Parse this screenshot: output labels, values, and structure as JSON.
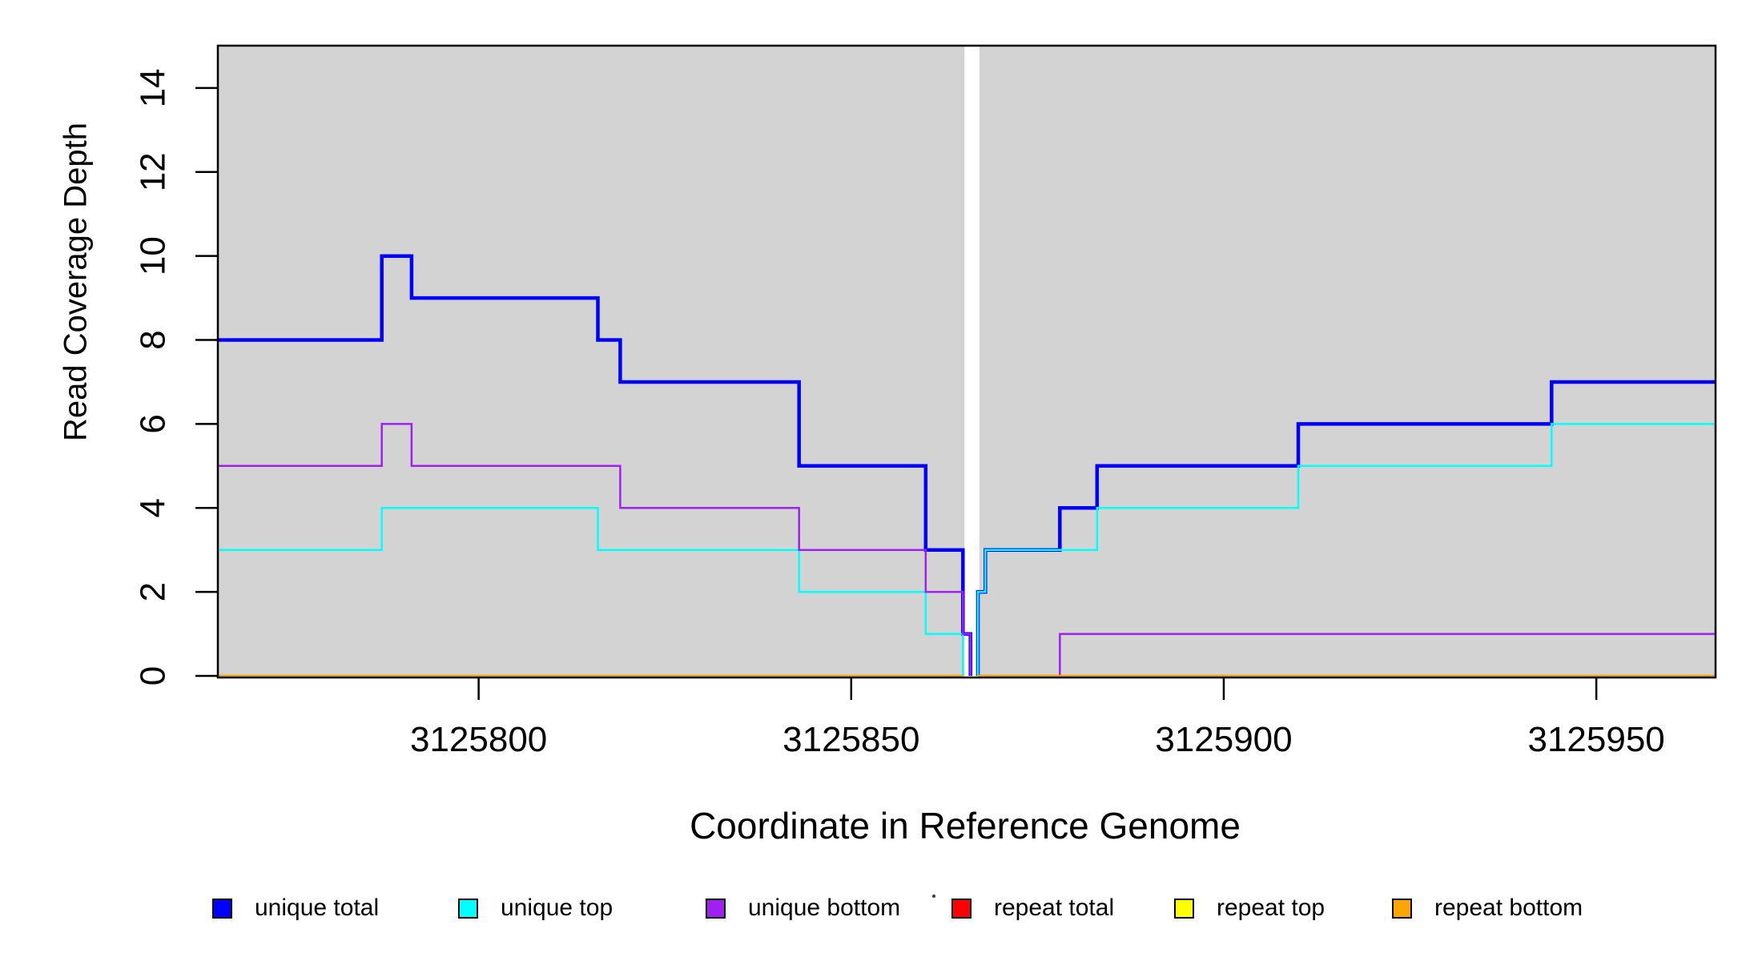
{
  "chart_data": {
    "type": "line",
    "step": true,
    "title": "",
    "xlabel": "Coordinate in Reference Genome",
    "ylabel": "Read Coverage Depth",
    "xlim": [
      3125765,
      3125966
    ],
    "ylim": [
      0,
      15
    ],
    "x_ticks": [
      3125800,
      3125850,
      3125900,
      3125950
    ],
    "y_ticks": [
      0,
      2,
      4,
      6,
      8,
      10,
      12,
      14
    ],
    "grid": false,
    "plot_background": "#d3d3d3",
    "page_background": "#ffffff",
    "axis_color": "#000000",
    "no_data_gap": {
      "from": 3125865.2,
      "to": 3125867.2,
      "color": "#ffffff"
    },
    "legend_position": "bottom",
    "series": [
      {
        "name": "unique total",
        "color": "#0000ff",
        "width": 4.5,
        "segments": [
          {
            "changes": [
              [
                3125765,
                8
              ],
              [
                3125787,
                10
              ],
              [
                3125791,
                9
              ],
              [
                3125816,
                8
              ],
              [
                3125819,
                7
              ],
              [
                3125843,
                5
              ],
              [
                3125860,
                3
              ],
              [
                3125865,
                1
              ],
              [
                3125866,
                0
              ]
            ],
            "end": 3125866
          },
          {
            "changes": [
              [
                3125867,
                0
              ],
              [
                3125867,
                2
              ],
              [
                3125868,
                3
              ],
              [
                3125878,
                4
              ],
              [
                3125883,
                5
              ],
              [
                3125910,
                6
              ],
              [
                3125944,
                7
              ]
            ],
            "end": 3125966
          }
        ]
      },
      {
        "name": "unique top",
        "color": "#00ffff",
        "width": 2.5,
        "segments": [
          {
            "changes": [
              [
                3125765,
                3
              ],
              [
                3125787,
                4
              ],
              [
                3125816,
                3
              ],
              [
                3125843,
                2
              ],
              [
                3125860,
                1
              ],
              [
                3125865,
                0
              ]
            ],
            "end": 3125865
          },
          {
            "changes": [
              [
                3125867,
                0
              ],
              [
                3125867,
                2
              ],
              [
                3125868,
                3
              ],
              [
                3125883,
                4
              ],
              [
                3125910,
                5
              ],
              [
                3125944,
                6
              ]
            ],
            "end": 3125966
          }
        ]
      },
      {
        "name": "unique bottom",
        "color": "#a020f0",
        "width": 2.5,
        "segments": [
          {
            "changes": [
              [
                3125765,
                5
              ],
              [
                3125787,
                6
              ],
              [
                3125791,
                5
              ],
              [
                3125819,
                4
              ],
              [
                3125843,
                3
              ],
              [
                3125860,
                2
              ],
              [
                3125865,
                1
              ],
              [
                3125866,
                0
              ]
            ],
            "end": 3125866
          },
          {
            "changes": [
              [
                3125867,
                0
              ],
              [
                3125878,
                1
              ]
            ],
            "end": 3125966
          }
        ]
      },
      {
        "name": "repeat total",
        "color": "#ff0000",
        "width": 2.5,
        "segments": [
          {
            "changes": [
              [
                3125765,
                0
              ]
            ],
            "end": 3125865
          },
          {
            "changes": [
              [
                3125867,
                0
              ]
            ],
            "end": 3125966
          }
        ]
      },
      {
        "name": "repeat top",
        "color": "#ffff00",
        "width": 2.5,
        "segments": [
          {
            "changes": [
              [
                3125765,
                0
              ]
            ],
            "end": 3125865
          },
          {
            "changes": [
              [
                3125867,
                0
              ]
            ],
            "end": 3125966
          }
        ]
      },
      {
        "name": "repeat bottom",
        "color": "#ffa500",
        "width": 2.5,
        "segments": [
          {
            "changes": [
              [
                3125765,
                0
              ]
            ],
            "end": 3125865
          },
          {
            "changes": [
              [
                3125867,
                0
              ]
            ],
            "end": 3125966
          }
        ]
      }
    ],
    "legend": {
      "items": [
        {
          "label": "unique total",
          "color": "#0000ff"
        },
        {
          "label": "unique top",
          "color": "#00ffff"
        },
        {
          "label": "unique bottom",
          "color": "#a020f0"
        },
        {
          "label": "repeat total",
          "color": "#ff0000"
        },
        {
          "label": "repeat top",
          "color": "#ffff00"
        },
        {
          "label": "repeat bottom",
          "color": "#ffa500"
        }
      ]
    }
  }
}
